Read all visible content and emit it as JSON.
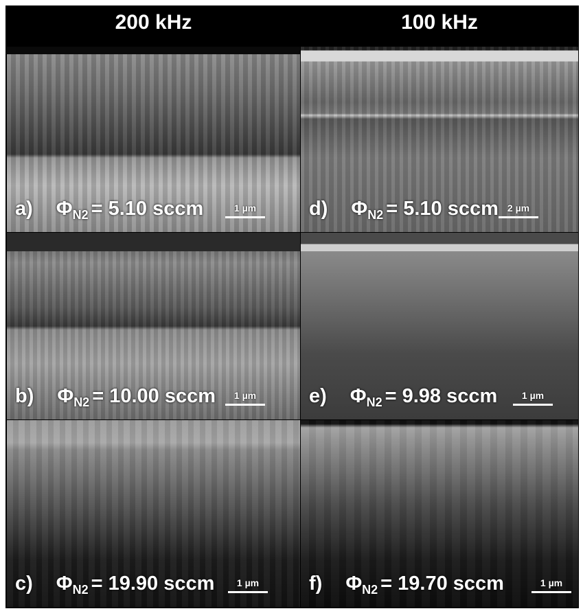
{
  "columns": [
    "200 kHz",
    "100 kHz"
  ],
  "panels": [
    {
      "label": "a)",
      "symbol": "Φ",
      "subscript": "N2",
      "value": "= 5.10 sccm",
      "scale": "1 µm"
    },
    {
      "label": "b)",
      "symbol": "Φ",
      "subscript": "N2",
      "value": "= 10.00 sccm",
      "scale": "1 µm"
    },
    {
      "label": "c)",
      "symbol": "Φ",
      "subscript": "N2",
      "value": "= 19.90 sccm",
      "scale": "1 µm"
    },
    {
      "label": "d)",
      "symbol": "Φ",
      "subscript": "N2",
      "value": "= 5.10 sccm",
      "scale": "2 µm"
    },
    {
      "label": "e)",
      "symbol": "Φ",
      "subscript": "N2",
      "value": "= 9.98 sccm",
      "scale": "1 µm"
    },
    {
      "label": "f)",
      "symbol": "Φ",
      "subscript": "N2",
      "value": "= 19.70 sccm",
      "scale": "1 µm"
    }
  ]
}
